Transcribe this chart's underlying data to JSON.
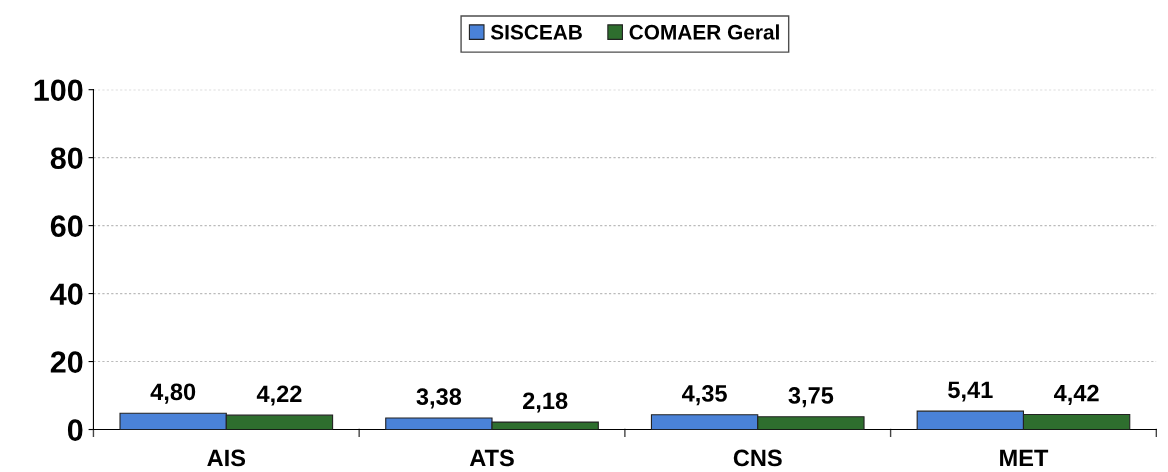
{
  "chart_data": {
    "type": "bar",
    "categories": [
      "AIS",
      "ATS",
      "CNS",
      "MET"
    ],
    "series": [
      {
        "name": "SISCEAB",
        "color": "#4a82d8",
        "values": [
          4.8,
          3.38,
          4.35,
          5.41
        ],
        "value_labels": [
          "4,80",
          "3,38",
          "4,35",
          "5,41"
        ]
      },
      {
        "name": "COMAER Geral",
        "color": "#2e6e2e",
        "values": [
          4.22,
          2.18,
          3.75,
          4.42
        ],
        "value_labels": [
          "4,22",
          "2,18",
          "3,75",
          "4,42"
        ]
      }
    ],
    "ylim": [
      0,
      100
    ],
    "yticks": [
      0,
      20,
      40,
      60,
      80,
      100
    ],
    "grid": "y",
    "legend": "top"
  }
}
